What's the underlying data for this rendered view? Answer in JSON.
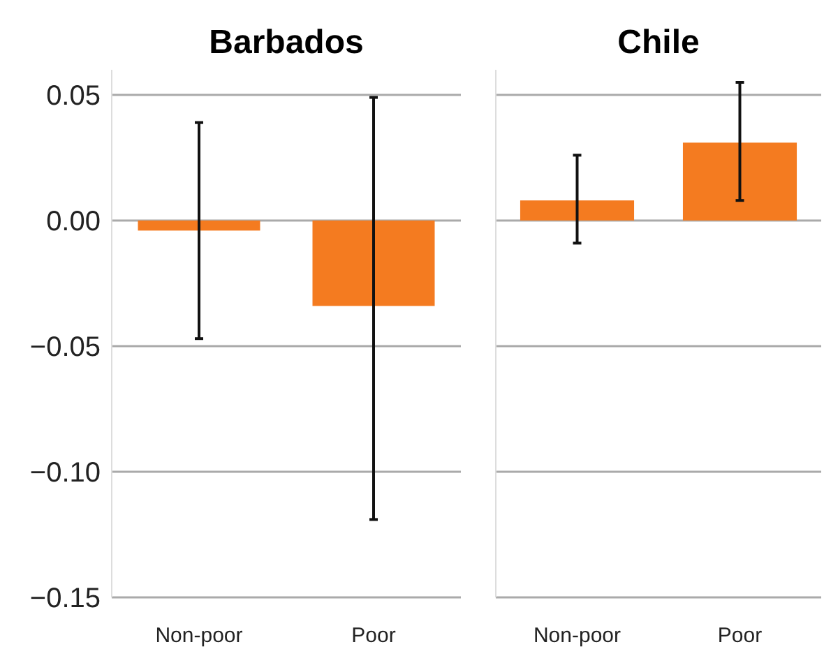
{
  "chart_data": [
    {
      "type": "bar",
      "title": "Barbados",
      "categories": [
        "Non-poor",
        "Poor"
      ],
      "values": [
        -0.004,
        -0.034
      ],
      "errors": [
        [
          -0.047,
          0.039
        ],
        [
          -0.119,
          0.049
        ]
      ],
      "color": "#f47b20",
      "ylim": [
        -0.15,
        0.06
      ],
      "yticks": [
        {
          "value": 0.05,
          "label": "0.05"
        },
        {
          "value": 0,
          "label": "0.00"
        },
        {
          "value": -0.05,
          "label": "−0.05"
        },
        {
          "value": -0.1,
          "label": "−0.10"
        },
        {
          "value": -0.15,
          "label": "−0.15"
        }
      ],
      "grid": "y"
    },
    {
      "type": "bar",
      "title": "Chile",
      "categories": [
        "Non-poor",
        "Poor"
      ],
      "values": [
        0.008,
        0.031
      ],
      "errors": [
        [
          -0.009,
          0.026
        ],
        [
          0.008,
          0.055
        ]
      ],
      "color": "#f47b20",
      "ylim": [
        -0.15,
        0.06
      ],
      "yticks": [
        0.05,
        0,
        -0.05,
        -0.1,
        -0.15
      ],
      "grid": "y",
      "tick_labels": "x"
    }
  ]
}
